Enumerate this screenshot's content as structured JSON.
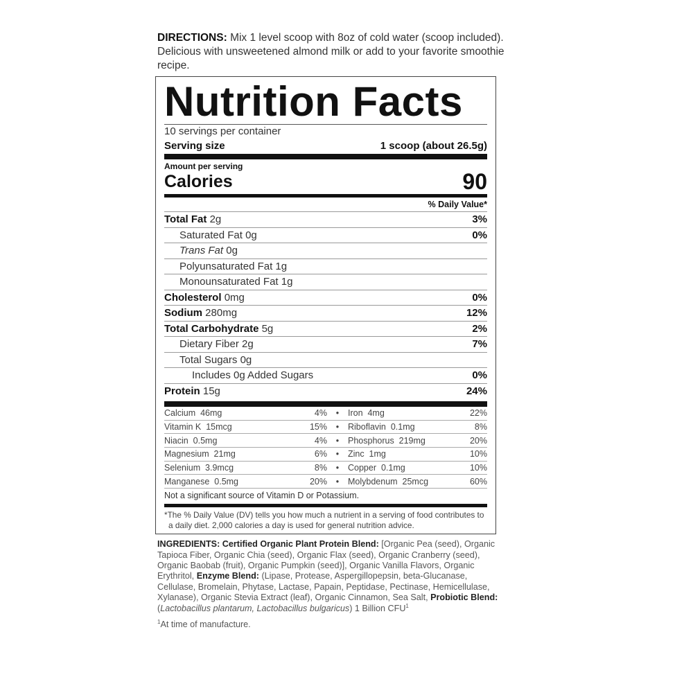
{
  "directions": {
    "label": "DIRECTIONS:",
    "text": "Mix 1 level scoop with 8oz of cold water (scoop included). Delicious with unsweetened almond milk or add to your favorite smoothie recipe."
  },
  "label": {
    "title": "Nutrition Facts",
    "servings": "10 servings per container",
    "serving_size_label": "Serving size",
    "serving_size_value": "1 scoop (about 26.5g)",
    "amount_per_serving": "Amount per serving",
    "calories_label": "Calories",
    "calories_value": "90",
    "dv_header": "% Daily Value*",
    "nutrients": [
      {
        "name": "Total Fat",
        "amount": "2g",
        "dv": "3%",
        "bold": true,
        "indent": 0
      },
      {
        "name": "Saturated Fat",
        "amount": "0g",
        "dv": "0%",
        "bold": false,
        "indent": 1
      },
      {
        "name": "Trans Fat",
        "amount": "0g",
        "dv": "",
        "bold": false,
        "indent": 1,
        "italic": true
      },
      {
        "name": "Polyunsaturated Fat",
        "amount": "1g",
        "dv": "",
        "bold": false,
        "indent": 1
      },
      {
        "name": "Monounsaturated Fat",
        "amount": "1g",
        "dv": "",
        "bold": false,
        "indent": 1
      },
      {
        "name": "Cholesterol",
        "amount": "0mg",
        "dv": "0%",
        "bold": true,
        "indent": 0
      },
      {
        "name": "Sodium",
        "amount": "280mg",
        "dv": "12%",
        "bold": true,
        "indent": 0
      },
      {
        "name": "Total Carbohydrate",
        "amount": "5g",
        "dv": "2%",
        "bold": true,
        "indent": 0
      },
      {
        "name": "Dietary Fiber",
        "amount": "2g",
        "dv": "7%",
        "bold": false,
        "indent": 1
      },
      {
        "name": "Total Sugars",
        "amount": "0g",
        "dv": "",
        "bold": false,
        "indent": 1
      },
      {
        "name": "Includes 0g Added Sugars",
        "amount": "",
        "dv": "0%",
        "bold": false,
        "indent": 2
      },
      {
        "name": "Protein",
        "amount": "15g",
        "dv": "24%",
        "bold": true,
        "indent": 0
      }
    ],
    "micros": [
      {
        "l": "Calcium  46mg",
        "lp": "4%",
        "r": "Iron  4mg",
        "rp": "22%"
      },
      {
        "l": "Vitamin K  15mcg",
        "lp": "15%",
        "r": "Riboflavin  0.1mg",
        "rp": "8%"
      },
      {
        "l": "Niacin  0.5mg",
        "lp": "4%",
        "r": "Phosphorus  219mg",
        "rp": "20%"
      },
      {
        "l": "Magnesium  21mg",
        "lp": "6%",
        "r": "Zinc  1mg",
        "rp": "10%"
      },
      {
        "l": "Selenium  3.9mcg",
        "lp": "8%",
        "r": "Copper  0.1mg",
        "rp": "10%"
      },
      {
        "l": "Manganese  0.5mg",
        "lp": "20%",
        "r": "Molybdenum  25mcg",
        "rp": "60%"
      }
    ],
    "separator": "•",
    "not_significant": "Not a significant source of Vitamin D or Potassium.",
    "footnote": "*The % Daily Value (DV) tells you how much a nutrient in a serving of food contributes to a daily diet. 2,000 calories a day is used for general nutrition advice."
  },
  "ingredients": {
    "label": "INGREDIENTS:",
    "blend1_label": "Certified Organic Plant Protein Blend:",
    "blend1_text": "[Organic Pea (seed), Organic Tapioca Fiber, Organic Chia (seed), Organic Flax (seed), Organic Cranberry (seed), Organic Baobab (fruit), Organic Pumpkin (seed)], Organic Vanilla Flavors, Organic Erythritol,",
    "blend2_label": "Enzyme Blend:",
    "blend2_text": "(Lipase, Protease, Aspergillopepsin, beta-Glucanase, Cellulase, Bromelain, Phytase, Lactase, Papain, Peptidase, Pectinase, Hemicellulase, Xylanase), Organic Stevia Extract (leaf), Organic Cinnamon, Sea Salt,",
    "blend3_label": "Probiotic Blend:",
    "blend3_open": "(",
    "blend3_italic": "Lactobacillus plantarum, Lactobacillus bulgaricus",
    "blend3_text": ") 1 Billion CFU",
    "sup": "1",
    "footnote": "At time of manufacture."
  }
}
